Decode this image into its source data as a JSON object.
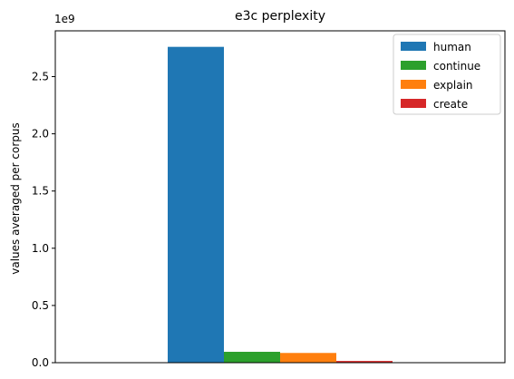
{
  "chart_data": {
    "type": "bar",
    "title": "e3c perplexity",
    "xlabel": "",
    "ylabel": "values averaged per corpus",
    "y_offset_label": "1e9",
    "y_scale": 1000000000,
    "ylim": [
      0,
      2900000000
    ],
    "yticks": [
      0,
      500000000,
      1000000000,
      1500000000,
      2000000000,
      2500000000
    ],
    "ytick_labels": [
      "0.0",
      "0.5",
      "1.0",
      "1.5",
      "2.0",
      "2.5"
    ],
    "categories": [
      ""
    ],
    "grid": false,
    "legend_position": "top-right",
    "series": [
      {
        "name": "human",
        "values": [
          2760000000
        ],
        "color": "#1f77b4"
      },
      {
        "name": "continue",
        "values": [
          95000000
        ],
        "color": "#2ca02c"
      },
      {
        "name": "explain",
        "values": [
          85000000
        ],
        "color": "#ff7f0e"
      },
      {
        "name": "create",
        "values": [
          15000000
        ],
        "color": "#d62728"
      }
    ]
  }
}
